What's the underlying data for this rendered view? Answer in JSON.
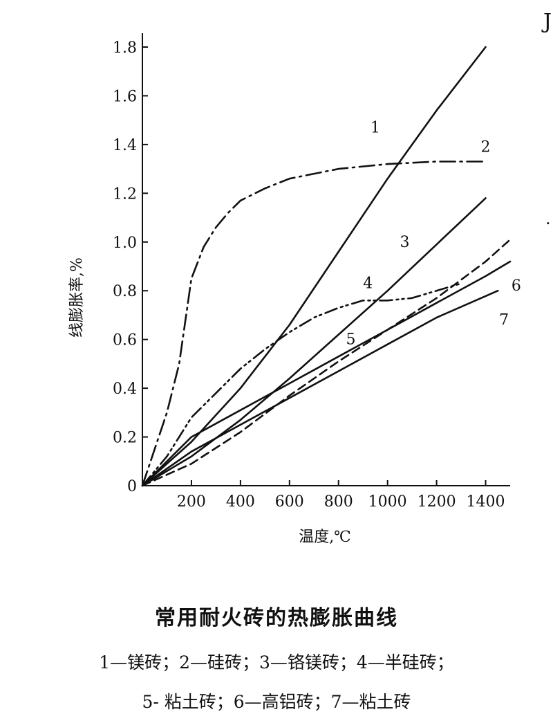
{
  "chart_data": {
    "type": "line",
    "title": "常用耐火砖的热膨胀曲线",
    "xlabel": "温度,℃",
    "ylabel": "线膨胀率,%",
    "xlim": [
      0,
      1500
    ],
    "ylim": [
      0,
      1.8
    ],
    "x_ticks": [
      200,
      400,
      600,
      800,
      1000,
      1200,
      1400
    ],
    "x_tick_labels": [
      "200",
      "400",
      "600",
      "800",
      "1000",
      "1200",
      "1400"
    ],
    "y_ticks": [
      0,
      0.2,
      0.4,
      0.6,
      0.8,
      1.0,
      1.2,
      1.4,
      1.6,
      1.8
    ],
    "y_tick_labels": [
      "0",
      "0.2",
      "0.4",
      "0.6",
      "0.8",
      "1.0",
      "1.2",
      "1.4",
      "1.6",
      "1.8"
    ],
    "grid": false,
    "legend": "none",
    "series": [
      {
        "name": "1",
        "style": "solid",
        "x": [
          0,
          200,
          400,
          600,
          800,
          1000,
          1200,
          1400
        ],
        "y": [
          0,
          0.18,
          0.4,
          0.66,
          0.96,
          1.26,
          1.54,
          1.8
        ]
      },
      {
        "name": "2",
        "style": "dash-dot",
        "x": [
          0,
          100,
          150,
          200,
          250,
          300,
          350,
          400,
          500,
          600,
          800,
          1000,
          1200,
          1400
        ],
        "y": [
          0,
          0.3,
          0.5,
          0.85,
          0.98,
          1.06,
          1.12,
          1.17,
          1.22,
          1.26,
          1.3,
          1.32,
          1.33,
          1.33
        ]
      },
      {
        "name": "3",
        "style": "solid",
        "x": [
          0,
          200,
          400,
          600,
          800,
          1000,
          1200,
          1400
        ],
        "y": [
          0,
          0.12,
          0.27,
          0.44,
          0.62,
          0.8,
          0.99,
          1.18
        ]
      },
      {
        "name": "4",
        "style": "dash-dot-dot",
        "x": [
          0,
          100,
          200,
          300,
          400,
          500,
          600,
          700,
          800,
          900,
          1000,
          1100,
          1200,
          1300
        ],
        "y": [
          0,
          0.12,
          0.28,
          0.38,
          0.48,
          0.56,
          0.63,
          0.69,
          0.73,
          0.76,
          0.76,
          0.77,
          0.8,
          0.83
        ]
      },
      {
        "name": "5",
        "style": "dashed",
        "x": [
          0,
          200,
          400,
          600,
          800,
          1000,
          1200,
          1400,
          1500
        ],
        "y": [
          0,
          0.09,
          0.22,
          0.37,
          0.51,
          0.64,
          0.77,
          0.92,
          1.01
        ]
      },
      {
        "name": "6",
        "style": "solid",
        "x": [
          0,
          200,
          400,
          600,
          800,
          1000,
          1200,
          1400,
          1500
        ],
        "y": [
          0,
          0.2,
          0.31,
          0.42,
          0.53,
          0.64,
          0.75,
          0.86,
          0.92
        ]
      },
      {
        "name": "7",
        "style": "solid",
        "x": [
          0,
          200,
          400,
          600,
          800,
          1000,
          1200,
          1450
        ],
        "y": [
          0,
          0.14,
          0.25,
          0.36,
          0.47,
          0.58,
          0.69,
          0.8
        ]
      }
    ],
    "annotations": [
      {
        "text": "1",
        "x": 950,
        "y": 1.45
      },
      {
        "text": "2",
        "x": 1400,
        "y": 1.37
      },
      {
        "text": "3",
        "x": 1070,
        "y": 0.98
      },
      {
        "text": "4",
        "x": 920,
        "y": 0.81
      },
      {
        "text": "5",
        "x": 850,
        "y": 0.58
      },
      {
        "text": "6",
        "x": 1525,
        "y": 0.8
      },
      {
        "text": "7",
        "x": 1475,
        "y": 0.66
      }
    ]
  },
  "caption": {
    "title": "常用耐火砖的热膨胀曲线",
    "line1": "1—镁砖；2—硅砖；3—铬镁砖；4—半硅砖；",
    "line2": "5- 粘土砖；6—高铝砖；7—粘土砖"
  },
  "edge_marks": {
    "top_right": "J",
    "right_middle": "."
  }
}
